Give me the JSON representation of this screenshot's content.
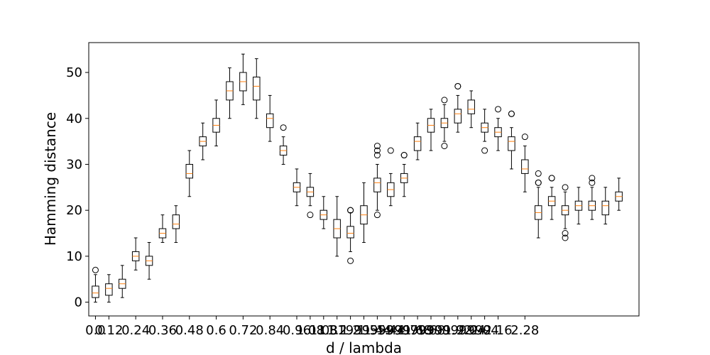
{
  "chart_data": {
    "type": "boxplot",
    "title": "",
    "xlabel": "d / lambda",
    "ylabel": "Hamming distance",
    "ylim": [
      -3,
      56.5
    ],
    "yticks": [
      0,
      10,
      20,
      30,
      40,
      50
    ],
    "xlim": [
      0.5,
      41.5
    ],
    "xticks": [
      {
        "pos": 1,
        "label": "0.0"
      },
      {
        "pos": 2,
        "label": "0.12"
      },
      {
        "pos": 4,
        "label": "0.24"
      },
      {
        "pos": 6,
        "label": "0.36"
      },
      {
        "pos": 8,
        "label": "0.48"
      },
      {
        "pos": 10,
        "label": "0.6"
      },
      {
        "pos": 12,
        "label": "0.72"
      },
      {
        "pos": 14,
        "label": "0.84"
      },
      {
        "pos": 16,
        "label": "0.96"
      },
      {
        "pos": 17,
        "label": "1.08"
      },
      {
        "pos": 18,
        "label": "1.08"
      },
      {
        "pos": 19,
        "label": "1.2"
      },
      {
        "pos": 20,
        "label": "1.2"
      },
      {
        "pos": 21,
        "label": "1.3199999999"
      },
      {
        "pos": 22,
        "label": "1.44"
      },
      {
        "pos": 23,
        "label": "1.44"
      },
      {
        "pos": 24,
        "label": "1.5599999999"
      },
      {
        "pos": 25,
        "label": "1.68"
      },
      {
        "pos": 26,
        "label": "1.68"
      },
      {
        "pos": 27,
        "label": "1.7999999999"
      },
      {
        "pos": 28,
        "label": "1.92"
      },
      {
        "pos": 29,
        "label": "2.04"
      },
      {
        "pos": 30,
        "label": "2.04"
      },
      {
        "pos": 31,
        "label": "2.16"
      },
      {
        "pos": 33,
        "label": "2.28"
      }
    ],
    "boxes": [
      {
        "q1": 1,
        "med": 2,
        "q3": 3.5,
        "wlo": 0,
        "whi": 6,
        "out": [
          7
        ]
      },
      {
        "q1": 1.5,
        "med": 3,
        "q3": 4,
        "wlo": 0,
        "whi": 6,
        "out": []
      },
      {
        "q1": 3,
        "med": 4,
        "q3": 5,
        "wlo": 1,
        "whi": 8,
        "out": []
      },
      {
        "q1": 9,
        "med": 10,
        "q3": 11,
        "wlo": 7,
        "whi": 14,
        "out": []
      },
      {
        "q1": 8,
        "med": 9,
        "q3": 10,
        "wlo": 5,
        "whi": 13,
        "out": []
      },
      {
        "q1": 14,
        "med": 15,
        "q3": 16,
        "wlo": 13,
        "whi": 19,
        "out": []
      },
      {
        "q1": 16,
        "med": 17,
        "q3": 19,
        "wlo": 13,
        "whi": 21,
        "out": []
      },
      {
        "q1": 27,
        "med": 28,
        "q3": 30,
        "wlo": 23,
        "whi": 33,
        "out": []
      },
      {
        "q1": 34,
        "med": 35,
        "q3": 36,
        "wlo": 31,
        "whi": 39,
        "out": []
      },
      {
        "q1": 37,
        "med": 38.5,
        "q3": 40,
        "wlo": 34,
        "whi": 44,
        "out": []
      },
      {
        "q1": 44,
        "med": 46,
        "q3": 48,
        "wlo": 40,
        "whi": 51,
        "out": []
      },
      {
        "q1": 46,
        "med": 48,
        "q3": 50,
        "wlo": 43,
        "whi": 54,
        "out": []
      },
      {
        "q1": 44,
        "med": 47,
        "q3": 49,
        "wlo": 40,
        "whi": 53,
        "out": []
      },
      {
        "q1": 38,
        "med": 40,
        "q3": 41,
        "wlo": 35,
        "whi": 45,
        "out": []
      },
      {
        "q1": 32,
        "med": 33,
        "q3": 34,
        "wlo": 30,
        "whi": 36,
        "out": [
          38
        ]
      },
      {
        "q1": 24,
        "med": 25,
        "q3": 26,
        "wlo": 21,
        "whi": 29,
        "out": []
      },
      {
        "q1": 23,
        "med": 24,
        "q3": 25,
        "wlo": 21,
        "whi": 28,
        "out": [
          19
        ]
      },
      {
        "q1": 18,
        "med": 19,
        "q3": 20,
        "wlo": 16,
        "whi": 23,
        "out": []
      },
      {
        "q1": 14,
        "med": 16,
        "q3": 18,
        "wlo": 10,
        "whi": 23,
        "out": []
      },
      {
        "q1": 14,
        "med": 15,
        "q3": 16.5,
        "wlo": 11,
        "whi": 19.5,
        "out": [
          20,
          20,
          9
        ]
      },
      {
        "q1": 17,
        "med": 19,
        "q3": 21,
        "wlo": 13,
        "whi": 26,
        "out": []
      },
      {
        "q1": 24,
        "med": 26,
        "q3": 27,
        "wlo": 20,
        "whi": 30,
        "out": [
          34,
          33,
          32,
          19
        ]
      },
      {
        "q1": 23,
        "med": 24.5,
        "q3": 26,
        "wlo": 21,
        "whi": 28,
        "out": [
          33
        ]
      },
      {
        "q1": 26,
        "med": 27,
        "q3": 28,
        "wlo": 23,
        "whi": 30,
        "out": [
          32,
          32
        ]
      },
      {
        "q1": 33,
        "med": 35,
        "q3": 36,
        "wlo": 31,
        "whi": 39,
        "out": []
      },
      {
        "q1": 37,
        "med": 38.5,
        "q3": 40,
        "wlo": 33,
        "whi": 42,
        "out": []
      },
      {
        "q1": 38,
        "med": 39,
        "q3": 40,
        "wlo": 35,
        "whi": 43,
        "out": [
          44,
          34
        ]
      },
      {
        "q1": 39,
        "med": 41,
        "q3": 42,
        "wlo": 37,
        "whi": 45,
        "out": [
          47,
          47
        ]
      },
      {
        "q1": 41,
        "med": 42,
        "q3": 44,
        "wlo": 38,
        "whi": 46,
        "out": []
      },
      {
        "q1": 37,
        "med": 38,
        "q3": 39,
        "wlo": 35,
        "whi": 42,
        "out": [
          33
        ]
      },
      {
        "q1": 36,
        "med": 37,
        "q3": 38,
        "wlo": 33,
        "whi": 40,
        "out": [
          42
        ]
      },
      {
        "q1": 33,
        "med": 35,
        "q3": 36,
        "wlo": 29,
        "whi": 38,
        "out": [
          41,
          41
        ]
      },
      {
        "q1": 28,
        "med": 29,
        "q3": 31,
        "wlo": 24,
        "whi": 34,
        "out": [
          36
        ]
      },
      {
        "q1": 18,
        "med": 19.5,
        "q3": 21,
        "wlo": 14,
        "whi": 25,
        "out": [
          28,
          26,
          26
        ]
      },
      {
        "q1": 21,
        "med": 22,
        "q3": 23,
        "wlo": 18,
        "whi": 25,
        "out": [
          27,
          27
        ]
      },
      {
        "q1": 19,
        "med": 20,
        "q3": 21,
        "wlo": 16,
        "whi": 24,
        "out": [
          25,
          15,
          14
        ]
      },
      {
        "q1": 20,
        "med": 21,
        "q3": 22,
        "wlo": 17,
        "whi": 25,
        "out": []
      },
      {
        "q1": 20,
        "med": 21,
        "q3": 22,
        "wlo": 18,
        "whi": 25,
        "out": [
          27,
          26
        ]
      },
      {
        "q1": 19,
        "med": 21,
        "q3": 22,
        "wlo": 17,
        "whi": 25,
        "out": []
      },
      {
        "q1": 22,
        "med": 23,
        "q3": 24,
        "wlo": 20,
        "whi": 27,
        "out": []
      }
    ]
  },
  "colors": {
    "median": "#ff7f0e",
    "box": "#000000",
    "axes": "#000000",
    "background": "#ffffff"
  }
}
